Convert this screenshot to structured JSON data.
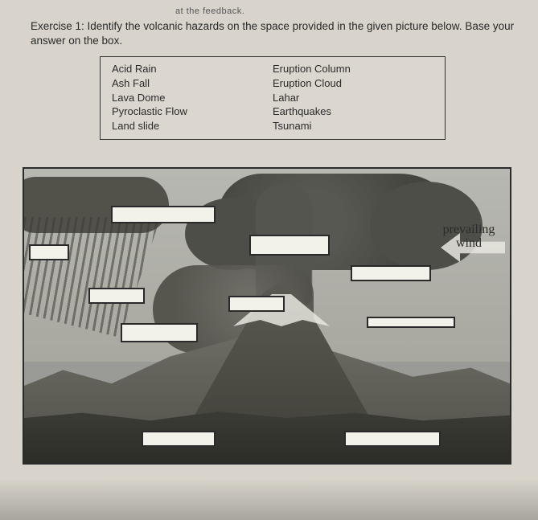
{
  "header_cut": "at the feedback.",
  "instruction": "Exercise 1: Identify the volcanic hazards on the space provided in the given picture below. Base your answer on the box.",
  "options": {
    "col1": [
      "Acid Rain",
      "Ash Fall",
      "Lava Dome",
      "Pyroclastic Flow",
      "Land slide"
    ],
    "col2": [
      "Eruption Column",
      "Eruption Cloud",
      "Lahar",
      "Earthquakes",
      "Tsunami"
    ]
  },
  "diagram": {
    "wind_label": "prevailing wind",
    "blank_count": 10,
    "colors": {
      "page_bg": "#d8d4cb",
      "border": "#2b2b2b",
      "sky": "#b0b0aa",
      "cloud": "#52524b",
      "volcano": "#50504a",
      "foreground": "#34342e",
      "blank_fill": "#f2f2ea"
    }
  }
}
